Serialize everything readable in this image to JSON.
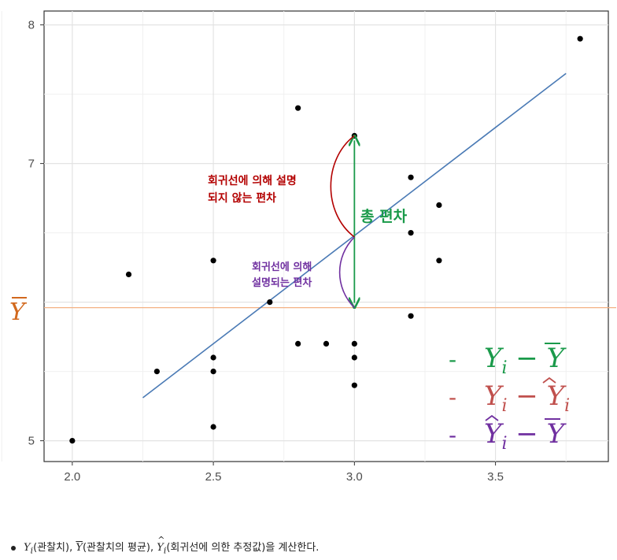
{
  "chart_data": {
    "type": "scatter",
    "x_ticks": [
      "2.0",
      "2.5",
      "3.0",
      "3.5"
    ],
    "y_ticks": [
      "5",
      "7",
      "8"
    ],
    "xlim": [
      1.9,
      3.9
    ],
    "ylim": [
      4.85,
      8.1
    ],
    "grid": true,
    "points": [
      {
        "x": 2.0,
        "y": 5.0
      },
      {
        "x": 2.2,
        "y": 6.2
      },
      {
        "x": 2.3,
        "y": 5.5
      },
      {
        "x": 2.5,
        "y": 6.3
      },
      {
        "x": 2.5,
        "y": 5.6
      },
      {
        "x": 2.5,
        "y": 5.5
      },
      {
        "x": 2.5,
        "y": 5.1
      },
      {
        "x": 2.7,
        "y": 6.0
      },
      {
        "x": 2.8,
        "y": 7.4
      },
      {
        "x": 2.8,
        "y": 5.7
      },
      {
        "x": 2.9,
        "y": 5.7
      },
      {
        "x": 3.0,
        "y": 7.2
      },
      {
        "x": 3.0,
        "y": 5.7
      },
      {
        "x": 3.0,
        "y": 5.6
      },
      {
        "x": 3.0,
        "y": 5.4
      },
      {
        "x": 3.2,
        "y": 6.9
      },
      {
        "x": 3.2,
        "y": 6.5
      },
      {
        "x": 3.2,
        "y": 5.9
      },
      {
        "x": 3.3,
        "y": 6.7
      },
      {
        "x": 3.3,
        "y": 6.3
      },
      {
        "x": 3.8,
        "y": 7.9
      }
    ],
    "regression_line": {
      "x": [
        2.25,
        3.75
      ],
      "y": [
        5.31,
        7.65
      ],
      "color": "#4a7ab5"
    },
    "mean_line": {
      "y": 5.96,
      "color": "#f4b183"
    },
    "highlight_point": {
      "x": 3.0,
      "y": 7.2
    },
    "fitted_point": {
      "x": 3.0,
      "y": 6.47
    },
    "annotations": {
      "y_bar_label": "Y",
      "unexplained": [
        "회귀선에 의해 설명",
        "되지 않는 편차"
      ],
      "explained": [
        "회귀선에 의해",
        "설명되는 편차"
      ],
      "total": "총 편차"
    },
    "legend": [
      {
        "dash": "-",
        "color": "#1a9a4a"
      },
      {
        "dash": "-",
        "color": "#c0504d"
      },
      {
        "dash": "-",
        "color": "#7030a0"
      }
    ]
  },
  "footnote": {
    "yi": "Y",
    "yi_sub": "i",
    "yi_paren": "(관찰치)",
    "ybar": "Y",
    "ybar_paren": "(관찰치의 평균),",
    "yhat": "Y",
    "yhat_sub": "i",
    "yhat_paren": "(회귀선에 의한 추정값)을 계산한다."
  }
}
